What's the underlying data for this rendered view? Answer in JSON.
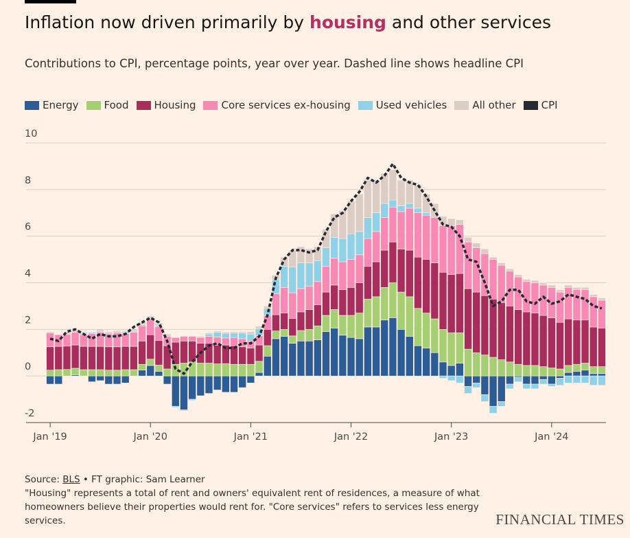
{
  "chart_data": {
    "type": "stacked_bar",
    "title_parts": [
      "Inflation now driven primarily by",
      "housing",
      "and other services"
    ],
    "title_highlight_color": "#b3305f",
    "subtitle": "Contributions to CPI, percentage points, year over year. Dashed line shows headline CPI",
    "categories": [
      "Jan '19",
      null,
      null,
      null,
      null,
      null,
      null,
      null,
      null,
      null,
      null,
      null,
      "Jan '20",
      null,
      null,
      null,
      null,
      null,
      null,
      null,
      null,
      null,
      null,
      null,
      "Jan '21",
      null,
      null,
      null,
      null,
      null,
      null,
      null,
      null,
      null,
      null,
      null,
      "Jan '22",
      null,
      null,
      null,
      null,
      null,
      null,
      null,
      null,
      null,
      null,
      null,
      "Jan '23",
      null,
      null,
      null,
      null,
      null,
      null,
      null,
      null,
      null,
      null,
      null,
      "Jan '24",
      null,
      null,
      null,
      null,
      null,
      null
    ],
    "series": [
      {
        "name": "Energy",
        "color": "#2b5c96",
        "values": [
          -0.35,
          -0.35,
          0.0,
          0.05,
          0.0,
          -0.25,
          -0.2,
          -0.35,
          -0.35,
          -0.3,
          0.0,
          0.25,
          0.45,
          0.2,
          -0.35,
          -1.3,
          -1.45,
          -1.0,
          -0.85,
          -0.75,
          -0.6,
          -0.7,
          -0.7,
          -0.5,
          -0.3,
          0.15,
          0.85,
          1.6,
          1.7,
          1.4,
          1.5,
          1.5,
          1.55,
          1.9,
          2.05,
          1.75,
          1.65,
          1.6,
          2.1,
          2.1,
          2.4,
          2.5,
          2.0,
          1.7,
          1.3,
          1.2,
          1.0,
          0.6,
          0.45,
          0.55,
          -0.45,
          -0.3,
          -0.8,
          -1.3,
          -1.1,
          -0.35,
          -0.05,
          -0.35,
          -0.35,
          -0.15,
          -0.35,
          -0.1,
          0.15,
          0.2,
          0.25,
          0.1,
          0.1
        ]
      },
      {
        "name": "Food",
        "color": "#a6cf74",
        "values": [
          0.25,
          0.27,
          0.28,
          0.28,
          0.27,
          0.27,
          0.27,
          0.25,
          0.25,
          0.27,
          0.27,
          0.25,
          0.27,
          0.27,
          0.3,
          0.5,
          0.55,
          0.6,
          0.55,
          0.55,
          0.52,
          0.53,
          0.5,
          0.5,
          0.5,
          0.48,
          0.45,
          0.33,
          0.3,
          0.32,
          0.45,
          0.5,
          0.6,
          0.7,
          0.8,
          0.85,
          0.95,
          1.1,
          1.2,
          1.3,
          1.4,
          1.5,
          1.6,
          1.7,
          1.6,
          1.5,
          1.45,
          1.4,
          1.4,
          1.3,
          1.15,
          1.0,
          0.9,
          0.8,
          0.7,
          0.6,
          0.5,
          0.45,
          0.45,
          0.4,
          0.35,
          0.3,
          0.3,
          0.3,
          0.3,
          0.3,
          0.3
        ]
      },
      {
        "name": "Housing",
        "color": "#a82d5c",
        "values": [
          1.0,
          1.0,
          1.0,
          1.0,
          1.0,
          1.0,
          1.0,
          1.0,
          1.0,
          1.0,
          1.0,
          1.0,
          1.05,
          1.05,
          1.0,
          0.95,
          0.95,
          0.9,
          0.85,
          0.85,
          0.8,
          0.8,
          0.8,
          0.75,
          0.7,
          0.7,
          0.7,
          0.7,
          0.7,
          0.75,
          0.8,
          0.85,
          0.9,
          1.0,
          1.05,
          1.1,
          1.2,
          1.3,
          1.4,
          1.5,
          1.6,
          1.75,
          1.85,
          2.0,
          2.2,
          2.3,
          2.4,
          2.45,
          2.5,
          2.55,
          2.6,
          2.6,
          2.55,
          2.5,
          2.45,
          2.4,
          2.35,
          2.3,
          2.25,
          2.2,
          2.15,
          2.0,
          2.0,
          1.9,
          1.85,
          1.7,
          1.65
        ]
      },
      {
        "name": "Core services ex-housing",
        "color": "#f888b4",
        "values": [
          0.6,
          0.5,
          0.5,
          0.55,
          0.5,
          0.55,
          0.6,
          0.55,
          0.6,
          0.55,
          0.6,
          0.65,
          0.65,
          0.6,
          0.4,
          0.2,
          0.2,
          0.2,
          0.25,
          0.3,
          0.35,
          0.3,
          0.35,
          0.35,
          0.3,
          0.4,
          0.6,
          0.9,
          1.1,
          1.1,
          1.0,
          1.0,
          1.0,
          1.1,
          1.15,
          1.2,
          1.2,
          1.2,
          1.2,
          1.3,
          1.4,
          1.5,
          1.6,
          1.8,
          1.9,
          1.9,
          1.95,
          2.0,
          2.1,
          2.1,
          2.0,
          1.9,
          1.8,
          1.7,
          1.6,
          1.5,
          1.4,
          1.3,
          1.3,
          1.3,
          1.3,
          1.3,
          1.35,
          1.3,
          1.3,
          1.3,
          1.2
        ]
      },
      {
        "name": "Used vehicles",
        "color": "#8fd1e8",
        "values": [
          0.0,
          0.0,
          0.0,
          0.0,
          0.05,
          0.05,
          0.05,
          0.05,
          0.05,
          0.05,
          0.05,
          0.05,
          0.05,
          0.05,
          0.0,
          -0.05,
          -0.05,
          -0.05,
          0.0,
          0.1,
          0.2,
          0.2,
          0.2,
          0.25,
          0.3,
          0.3,
          0.3,
          0.6,
          0.9,
          1.1,
          1.1,
          1.0,
          0.9,
          0.8,
          0.9,
          1.0,
          1.1,
          1.0,
          0.9,
          0.8,
          0.6,
          0.3,
          0.25,
          0.2,
          0.2,
          0.1,
          0.0,
          -0.1,
          -0.2,
          -0.3,
          -0.3,
          -0.2,
          -0.3,
          -0.3,
          -0.2,
          -0.2,
          -0.2,
          -0.2,
          -0.2,
          -0.2,
          -0.1,
          -0.3,
          -0.3,
          -0.3,
          -0.3,
          -0.4,
          -0.4
        ]
      },
      {
        "name": "All other",
        "color": "#dbccc4",
        "values": [
          0.05,
          0.0,
          0.1,
          0.1,
          0.05,
          0.0,
          0.1,
          0.05,
          0.05,
          0.05,
          0.1,
          0.1,
          0.1,
          0.1,
          0.1,
          0.0,
          0.0,
          0.0,
          0.05,
          0.05,
          0.05,
          0.05,
          0.05,
          0.05,
          0.1,
          0.1,
          0.1,
          0.2,
          0.4,
          0.7,
          0.7,
          0.6,
          0.6,
          0.8,
          1.0,
          1.2,
          1.4,
          1.6,
          1.6,
          1.4,
          1.3,
          1.3,
          1.1,
          1.0,
          1.0,
          0.8,
          0.6,
          0.4,
          0.3,
          0.2,
          0.2,
          0.2,
          0.2,
          0.1,
          0.1,
          0.1,
          0.1,
          0.1,
          0.1,
          0.1,
          0.1,
          0.1,
          0.1,
          0.1,
          0.1,
          0.1,
          0.1
        ]
      }
    ],
    "line": {
      "name": "CPI",
      "color": "#262a33",
      "values": [
        1.6,
        1.5,
        1.9,
        2.0,
        1.8,
        1.6,
        1.8,
        1.7,
        1.7,
        1.8,
        2.1,
        2.3,
        2.5,
        2.3,
        1.5,
        0.3,
        0.1,
        0.6,
        1.0,
        1.3,
        1.4,
        1.2,
        1.2,
        1.4,
        1.4,
        1.7,
        2.6,
        4.2,
        5.0,
        5.4,
        5.4,
        5.3,
        5.4,
        6.2,
        6.8,
        7.0,
        7.5,
        7.9,
        8.5,
        8.3,
        8.6,
        9.1,
        8.5,
        8.3,
        8.2,
        7.7,
        7.1,
        6.5,
        6.4,
        6.0,
        5.0,
        4.9,
        4.0,
        3.0,
        3.2,
        3.7,
        3.7,
        3.2,
        3.1,
        3.4,
        3.1,
        3.2,
        3.5,
        3.4,
        3.3,
        3.0,
        2.9
      ]
    },
    "ylim": [
      -2,
      10
    ],
    "yticks": [
      -2,
      0,
      2,
      4,
      6,
      8,
      10
    ],
    "grid": true,
    "source_label": "Source:",
    "source_link": "BLS",
    "credit": "• FT graphic: Sam Learner",
    "note": "\"Housing\" represents a total of rent and owners' equivalent rent of residences, a measure of what homeowners believe their properties would rent for. \"Core services\" refers to services less energy services.",
    "brand": "FINANCIAL TIMES"
  }
}
